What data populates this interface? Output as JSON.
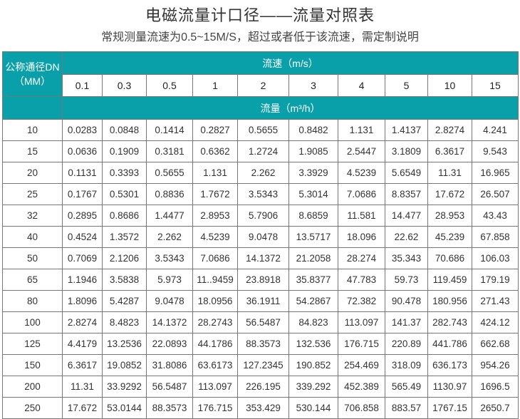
{
  "title": "电磁流量计口径——流量对照表",
  "subtitle": "常规测量流速为0.5~15M/S，超过或者低于该流速，需定制说明",
  "table": {
    "dn_header_line1": "公称通径DN",
    "dn_header_line2": "（MM）",
    "velocity_header": "流速（m/s）",
    "flow_header": "流量（m³/h）",
    "velocities": [
      "0.1",
      "0.3",
      "0.5",
      "1",
      "2",
      "3",
      "4",
      "5",
      "10",
      "15"
    ],
    "rows": [
      {
        "dn": "10",
        "values": [
          "0.0283",
          "0.0848",
          "0.1414",
          "0.2827",
          "0.5655",
          "0.8482",
          "1.131",
          "1.4137",
          "2.8274",
          "4.241"
        ]
      },
      {
        "dn": "15",
        "values": [
          "0.0636",
          "0.1909",
          "0.3181",
          "0.6362",
          "1.2724",
          "1.9085",
          "2.5447",
          "3.1809",
          "6.3617",
          "9.543"
        ]
      },
      {
        "dn": "20",
        "values": [
          "0.1131",
          "0.3393",
          "0.5655",
          "1.131",
          "2.262",
          "3.3929",
          "4.5239",
          "5.6549",
          "11.31",
          "16.965"
        ]
      },
      {
        "dn": "25",
        "values": [
          "0.1767",
          "0.5301",
          "0.8836",
          "1.7672",
          "3.5343",
          "5.3014",
          "7.0686",
          "8.8357",
          "17.672",
          "26.507"
        ]
      },
      {
        "dn": "32",
        "values": [
          "0.2895",
          "0.8686",
          "1.4477",
          "2.8953",
          "5.7906",
          "8.6859",
          "11.581",
          "14.477",
          "28.953",
          "43.43"
        ]
      },
      {
        "dn": "40",
        "values": [
          "0.4524",
          "1.3572",
          "2.262",
          "4.5239",
          "9.0478",
          "13.5717",
          "18.096",
          "22.62",
          "45.239",
          "67.858"
        ]
      },
      {
        "dn": "50",
        "values": [
          "0.7069",
          "2.1206",
          "3.5343",
          "7.0686",
          "14.1372",
          "21.2058",
          "28.274",
          "35.343",
          "70.686",
          "106.03"
        ]
      },
      {
        "dn": "65",
        "values": [
          "1.1946",
          "3.5838",
          "5.973",
          "11..9459",
          "23.8918",
          "35.8377",
          "47.783",
          "59.73",
          "119.459",
          "179.19"
        ]
      },
      {
        "dn": "80",
        "values": [
          "1.8096",
          "5.4287",
          "9.0478",
          "18.0956",
          "36.1911",
          "54.2867",
          "72.382",
          "90.478",
          "180.956",
          "271.43"
        ]
      },
      {
        "dn": "100",
        "values": [
          "2.8274",
          "8.4823",
          "14.1372",
          "28.2743",
          "56.5487",
          "84.823",
          "113.097",
          "141.37",
          "282.743",
          "424.12"
        ]
      },
      {
        "dn": "125",
        "values": [
          "4.4179",
          "13.2536",
          "22.0893",
          "44.1786",
          "88.3573",
          "132.536",
          "176.715",
          "220.89",
          "441.786",
          "662.68"
        ]
      },
      {
        "dn": "150",
        "values": [
          "6.3617",
          "19.0852",
          "31.8086",
          "63.6173",
          "127.2345",
          "190.852",
          "254.469",
          "318.09",
          "636.173",
          "954.26"
        ]
      },
      {
        "dn": "200",
        "values": [
          "11.31",
          "33.9292",
          "56.5487",
          "113.097",
          "226.195",
          "339.292",
          "452.389",
          "565.49",
          "1130.97",
          "1696.5"
        ]
      },
      {
        "dn": "250",
        "values": [
          "17.672",
          "53.0144",
          "88.3573",
          "176.715",
          "353.429",
          "530.144",
          "706.858",
          "883.57",
          "1767.15",
          "2650.7"
        ]
      }
    ]
  },
  "colors": {
    "header_teal": "#0aa0aa"
  }
}
